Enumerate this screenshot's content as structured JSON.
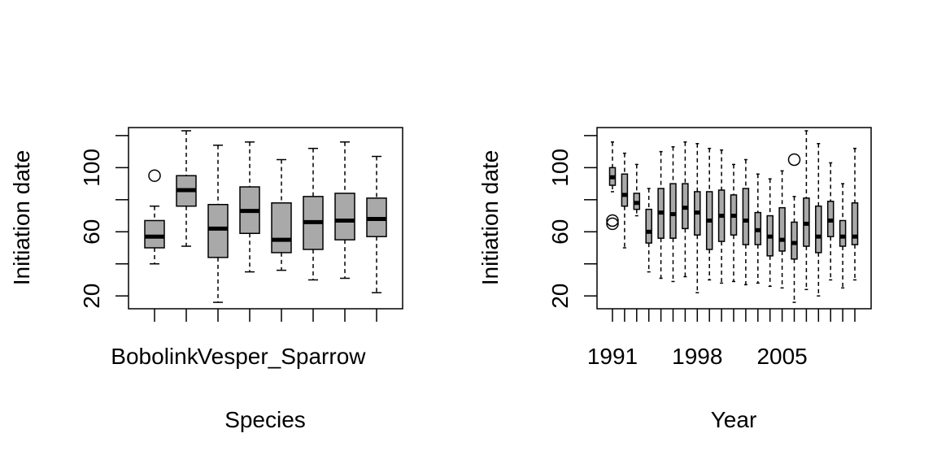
{
  "colors": {
    "box_fill": "#a9a9a9",
    "stroke": "#000000",
    "background": "#ffffff"
  },
  "chart_data": [
    {
      "type": "boxplot",
      "title": "",
      "xlabel": "Species",
      "ylabel": "Initiation date",
      "ylim": [
        12,
        125
      ],
      "yticks": [
        20,
        40,
        60,
        80,
        100,
        120
      ],
      "ytick_labels": [
        "20",
        "60",
        "100"
      ],
      "category_labels_shown": [
        {
          "index": 0,
          "text": "Bobolink"
        },
        {
          "index": 4,
          "text": "Vesper_Sparrow"
        }
      ],
      "boxes": [
        {
          "lo": 40,
          "q1": 50,
          "med": 57,
          "q3": 67,
          "hi": 76,
          "outliers": [
            95
          ]
        },
        {
          "lo": 51,
          "q1": 76,
          "med": 86,
          "q3": 95,
          "hi": 123,
          "outliers": []
        },
        {
          "lo": 16,
          "q1": 44,
          "med": 62,
          "q3": 77,
          "hi": 114,
          "outliers": []
        },
        {
          "lo": 35,
          "q1": 59,
          "med": 73,
          "q3": 88,
          "hi": 116,
          "outliers": []
        },
        {
          "lo": 36,
          "q1": 47,
          "med": 55,
          "q3": 78,
          "hi": 105,
          "outliers": []
        },
        {
          "lo": 30,
          "q1": 49,
          "med": 66,
          "q3": 82,
          "hi": 112,
          "outliers": []
        },
        {
          "lo": 31,
          "q1": 55,
          "med": 67,
          "q3": 84,
          "hi": 116,
          "outliers": []
        },
        {
          "lo": 22,
          "q1": 57,
          "med": 68,
          "q3": 81,
          "hi": 107,
          "outliers": []
        }
      ]
    },
    {
      "type": "boxplot",
      "title": "",
      "xlabel": "Year",
      "ylabel": "Initiation date",
      "ylim": [
        12,
        125
      ],
      "yticks": [
        20,
        40,
        60,
        80,
        100,
        120
      ],
      "ytick_labels": [
        "20",
        "60",
        "100"
      ],
      "category_labels_shown": [
        {
          "index": 0,
          "text": "1991"
        },
        {
          "index": 7,
          "text": "1998"
        },
        {
          "index": 14,
          "text": "2005"
        }
      ],
      "boxes": [
        {
          "lo": 85,
          "q1": 89,
          "med": 94,
          "q3": 100,
          "hi": 116,
          "outliers": [
            65,
            67
          ]
        },
        {
          "lo": 50,
          "q1": 76,
          "med": 83,
          "q3": 96,
          "hi": 109,
          "outliers": []
        },
        {
          "lo": 70,
          "q1": 74,
          "med": 78,
          "q3": 84,
          "hi": 102,
          "outliers": []
        },
        {
          "lo": 35,
          "q1": 53,
          "med": 60,
          "q3": 74,
          "hi": 87,
          "outliers": []
        },
        {
          "lo": 31,
          "q1": 56,
          "med": 72,
          "q3": 87,
          "hi": 110,
          "outliers": []
        },
        {
          "lo": 29,
          "q1": 56,
          "med": 71,
          "q3": 90,
          "hi": 113,
          "outliers": []
        },
        {
          "lo": 32,
          "q1": 62,
          "med": 75,
          "q3": 90,
          "hi": 116,
          "outliers": []
        },
        {
          "lo": 22,
          "q1": 58,
          "med": 72,
          "q3": 85,
          "hi": 115,
          "outliers": []
        },
        {
          "lo": 30,
          "q1": 49,
          "med": 67,
          "q3": 85,
          "hi": 112,
          "outliers": []
        },
        {
          "lo": 28,
          "q1": 54,
          "med": 70,
          "q3": 86,
          "hi": 111,
          "outliers": []
        },
        {
          "lo": 29,
          "q1": 58,
          "med": 70,
          "q3": 83,
          "hi": 102,
          "outliers": []
        },
        {
          "lo": 27,
          "q1": 52,
          "med": 67,
          "q3": 87,
          "hi": 105,
          "outliers": []
        },
        {
          "lo": 28,
          "q1": 52,
          "med": 61,
          "q3": 72,
          "hi": 96,
          "outliers": []
        },
        {
          "lo": 26,
          "q1": 45,
          "med": 57,
          "q3": 70,
          "hi": 93,
          "outliers": []
        },
        {
          "lo": 25,
          "q1": 48,
          "med": 55,
          "q3": 75,
          "hi": 98,
          "outliers": []
        },
        {
          "lo": 16,
          "q1": 43,
          "med": 53,
          "q3": 66,
          "hi": 82,
          "outliers": [
            105
          ]
        },
        {
          "lo": 24,
          "q1": 51,
          "med": 65,
          "q3": 81,
          "hi": 123,
          "outliers": []
        },
        {
          "lo": 20,
          "q1": 47,
          "med": 57,
          "q3": 76,
          "hi": 115,
          "outliers": []
        },
        {
          "lo": 30,
          "q1": 57,
          "med": 67,
          "q3": 79,
          "hi": 103,
          "outliers": []
        },
        {
          "lo": 25,
          "q1": 51,
          "med": 57,
          "q3": 67,
          "hi": 90,
          "outliers": []
        },
        {
          "lo": 30,
          "q1": 52,
          "med": 57,
          "q3": 78,
          "hi": 112,
          "outliers": []
        }
      ]
    }
  ]
}
